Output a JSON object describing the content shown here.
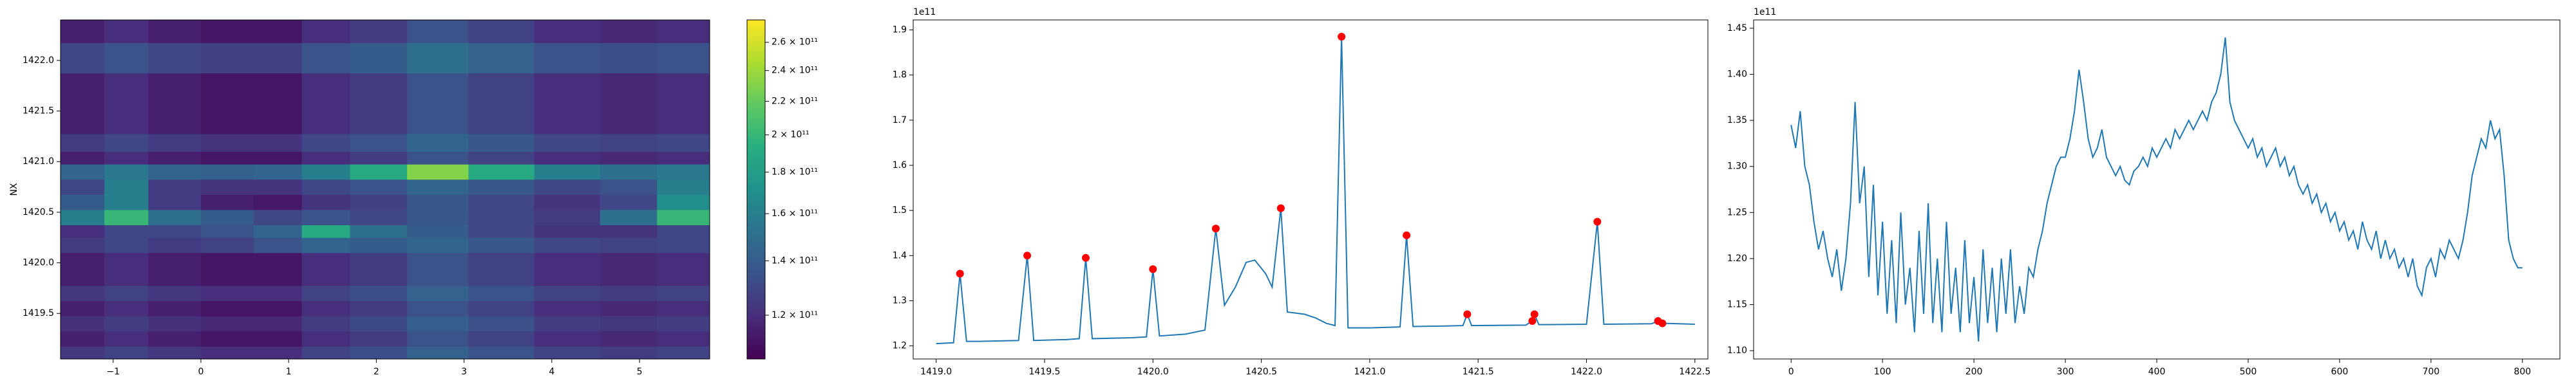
{
  "chart_data": [
    {
      "type": "heatmap",
      "ylabel": "NX",
      "colormap": "viridis",
      "norm": "log",
      "xlim": [
        -1.6,
        5.8
      ],
      "ylim": [
        1419.05,
        1422.4
      ],
      "xticks": [
        {
          "value": -1,
          "label": "−1"
        },
        0,
        1,
        2,
        3,
        4,
        5
      ],
      "yticks": [
        1419.5,
        {
          "value": 1420.0,
          "label": "1420.0"
        },
        1420.5,
        {
          "value": 1421.0,
          "label": "1421.0"
        },
        1421.5,
        {
          "value": 1422.0,
          "label": "1422.0"
        }
      ],
      "clim": [
        106000000000.0,
        277000000000.0
      ],
      "cticks": [
        {
          "value": 120000000000.0,
          "label": "1.2 × 10¹¹"
        },
        {
          "value": 140000000000.0,
          "label": "1.4 × 10¹¹"
        },
        {
          "value": 160000000000.0,
          "label": "1.6 × 10¹¹"
        },
        {
          "value": 180000000000.0,
          "label": "1.8 × 10¹¹"
        },
        {
          "value": 200000000000.0,
          "label": "2 × 10¹¹"
        },
        {
          "value": 220000000000.0,
          "label": "2.2 × 10¹¹"
        },
        {
          "value": 240000000000.0,
          "label": "2.4 × 10¹¹"
        },
        {
          "value": 260000000000.0,
          "label": "2.6 × 10¹¹"
        }
      ],
      "x": [
        -1.3,
        -0.9,
        -0.3,
        0.3,
        0.9,
        1.4,
        2.0,
        2.7,
        3.4,
        4.2,
        4.9,
        5.5
      ],
      "y": [
        1419.1,
        1419.25,
        1419.4,
        1419.55,
        1419.7,
        1419.85,
        1420.0,
        1420.2,
        1420.3,
        1420.45,
        1420.6,
        1420.75,
        1420.9,
        1421.05,
        1421.15,
        1421.4,
        1421.7,
        1422.05,
        1422.3
      ],
      "z": [
        [
          123000000000.0,
          128000000000.0,
          123000000000.0,
          120000000000.0,
          120000000000.0,
          128000000000.0,
          133000000000.0,
          143000000000.0,
          136000000000.0,
          128000000000.0,
          126000000000.0,
          128000000000.0
        ],
        [
          115000000000.0,
          120000000000.0,
          115000000000.0,
          112000000000.0,
          112000000000.0,
          120000000000.0,
          125000000000.0,
          135000000000.0,
          128000000000.0,
          120000000000.0,
          118000000000.0,
          120000000000.0
        ],
        [
          121000000000.0,
          126000000000.0,
          121000000000.0,
          118000000000.0,
          118000000000.0,
          126000000000.0,
          131000000000.0,
          141000000000.0,
          134000000000.0,
          126000000000.0,
          124000000000.0,
          126000000000.0
        ],
        [
          115000000000.0,
          120000000000.0,
          115000000000.0,
          112000000000.0,
          112000000000.0,
          120000000000.0,
          125000000000.0,
          135000000000.0,
          128000000000.0,
          120000000000.0,
          118000000000.0,
          120000000000.0
        ],
        [
          123000000000.0,
          128000000000.0,
          123000000000.0,
          120000000000.0,
          120000000000.0,
          128000000000.0,
          133000000000.0,
          143000000000.0,
          136000000000.0,
          128000000000.0,
          126000000000.0,
          128000000000.0
        ],
        [
          115000000000.0,
          120000000000.0,
          115000000000.0,
          112000000000.0,
          112000000000.0,
          120000000000.0,
          125000000000.0,
          135000000000.0,
          128000000000.0,
          120000000000.0,
          118000000000.0,
          120000000000.0
        ],
        [
          115000000000.0,
          120000000000.0,
          115000000000.0,
          112000000000.0,
          112000000000.0,
          120000000000.0,
          125000000000.0,
          135000000000.0,
          128000000000.0,
          120000000000.0,
          118000000000.0,
          120000000000.0
        ],
        [
          125000000000.0,
          130000000000.0,
          125000000000.0,
          128000000000.0,
          135000000000.0,
          145000000000.0,
          140000000000.0,
          145000000000.0,
          138000000000.0,
          130000000000.0,
          128000000000.0,
          130000000000.0
        ],
        [
          120000000000.0,
          130000000000.0,
          130000000000.0,
          135000000000.0,
          145000000000.0,
          190000000000.0,
          150000000000.0,
          140000000000.0,
          130000000000.0,
          122000000000.0,
          122000000000.0,
          130000000000.0
        ],
        [
          160000000000.0,
          200000000000.0,
          150000000000.0,
          140000000000.0,
          130000000000.0,
          135000000000.0,
          130000000000.0,
          138000000000.0,
          130000000000.0,
          125000000000.0,
          150000000000.0,
          200000000000.0
        ],
        [
          140000000000.0,
          160000000000.0,
          125000000000.0,
          115000000000.0,
          113000000000.0,
          122000000000.0,
          127000000000.0,
          137000000000.0,
          130000000000.0,
          122000000000.0,
          130000000000.0,
          170000000000.0
        ],
        [
          130000000000.0,
          160000000000.0,
          125000000000.0,
          122000000000.0,
          122000000000.0,
          130000000000.0,
          135000000000.0,
          145000000000.0,
          138000000000.0,
          130000000000.0,
          135000000000.0,
          160000000000.0
        ],
        [
          145000000000.0,
          155000000000.0,
          145000000000.0,
          142000000000.0,
          145000000000.0,
          160000000000.0,
          190000000000.0,
          230000000000.0,
          190000000000.0,
          160000000000.0,
          150000000000.0,
          155000000000.0
        ],
        [
          115000000000.0,
          120000000000.0,
          115000000000.0,
          112000000000.0,
          112000000000.0,
          120000000000.0,
          125000000000.0,
          135000000000.0,
          128000000000.0,
          120000000000.0,
          118000000000.0,
          120000000000.0
        ],
        [
          125000000000.0,
          130000000000.0,
          125000000000.0,
          122000000000.0,
          122000000000.0,
          130000000000.0,
          135000000000.0,
          145000000000.0,
          138000000000.0,
          130000000000.0,
          128000000000.0,
          130000000000.0
        ],
        [
          115000000000.0,
          120000000000.0,
          115000000000.0,
          112000000000.0,
          112000000000.0,
          120000000000.0,
          125000000000.0,
          135000000000.0,
          128000000000.0,
          120000000000.0,
          118000000000.0,
          120000000000.0
        ],
        [
          115000000000.0,
          120000000000.0,
          115000000000.0,
          112000000000.0,
          112000000000.0,
          120000000000.0,
          125000000000.0,
          135000000000.0,
          128000000000.0,
          120000000000.0,
          118000000000.0,
          120000000000.0
        ],
        [
          130000000000.0,
          135000000000.0,
          130000000000.0,
          127000000000.0,
          127000000000.0,
          135000000000.0,
          140000000000.0,
          150000000000.0,
          143000000000.0,
          135000000000.0,
          133000000000.0,
          135000000000.0
        ],
        [
          115000000000.0,
          120000000000.0,
          115000000000.0,
          112000000000.0,
          112000000000.0,
          120000000000.0,
          125000000000.0,
          135000000000.0,
          128000000000.0,
          120000000000.0,
          118000000000.0,
          120000000000.0
        ]
      ]
    },
    {
      "type": "line",
      "offset_text": "1e11",
      "color": "#1f77b4",
      "xlim": [
        1418.894,
        1422.56
      ],
      "ylim": [
        1.171,
        1.922
      ],
      "xticks": [
        {
          "value": 1419.0,
          "label": "1419.0"
        },
        1419.5,
        {
          "value": 1420.0,
          "label": "1420.0"
        },
        1420.5,
        {
          "value": 1421.0,
          "label": "1421.0"
        },
        1421.5,
        {
          "value": 1422.0,
          "label": "1422.0"
        },
        1422.5
      ],
      "yticks": [
        1.2,
        1.3,
        1.4,
        1.5,
        1.6,
        1.7,
        1.8,
        1.9
      ],
      "x": [
        1419.0,
        1419.08,
        1419.11,
        1419.14,
        1419.2,
        1419.38,
        1419.42,
        1419.45,
        1419.6,
        1419.66,
        1419.69,
        1419.72,
        1419.9,
        1419.97,
        1420.0,
        1420.03,
        1420.15,
        1420.24,
        1420.29,
        1420.33,
        1420.38,
        1420.43,
        1420.47,
        1420.52,
        1420.55,
        1420.59,
        1420.62,
        1420.7,
        1420.75,
        1420.8,
        1420.84,
        1420.87,
        1420.9,
        1421.0,
        1421.14,
        1421.17,
        1421.2,
        1421.35,
        1421.43,
        1421.45,
        1421.47,
        1421.72,
        1421.75,
        1421.76,
        1421.78,
        1422.0,
        1422.05,
        1422.08,
        1422.3,
        1422.33,
        1422.35,
        1422.5
      ],
      "values": [
        1.205,
        1.207,
        1.36,
        1.21,
        1.21,
        1.212,
        1.4,
        1.212,
        1.214,
        1.216,
        1.395,
        1.216,
        1.218,
        1.22,
        1.37,
        1.222,
        1.226,
        1.235,
        1.46,
        1.29,
        1.33,
        1.385,
        1.39,
        1.36,
        1.33,
        1.505,
        1.275,
        1.27,
        1.262,
        1.25,
        1.245,
        1.885,
        1.24,
        1.24,
        1.242,
        1.445,
        1.243,
        1.244,
        1.245,
        1.27,
        1.245,
        1.246,
        1.255,
        1.27,
        1.247,
        1.248,
        1.475,
        1.248,
        1.249,
        1.255,
        1.25,
        1.248
      ],
      "markers": {
        "color": "#ff0000",
        "x": [
          1419.11,
          1419.42,
          1419.69,
          1420.0,
          1420.29,
          1420.59,
          1420.87,
          1421.17,
          1421.45,
          1421.75,
          1421.76,
          1422.05,
          1422.33,
          1422.35
        ],
        "values": [
          1.36,
          1.4,
          1.395,
          1.37,
          1.46,
          1.505,
          1.885,
          1.445,
          1.27,
          1.255,
          1.27,
          1.475,
          1.255,
          1.25
        ]
      }
    },
    {
      "type": "line",
      "offset_text": "1e11",
      "color": "#1f77b4",
      "xlim": [
        -41,
        841
      ],
      "ylim": [
        1.091,
        1.459
      ],
      "xticks": [
        0,
        100,
        200,
        300,
        400,
        500,
        600,
        700,
        800
      ],
      "yticks": [
        {
          "value": 1.1,
          "label": "1.10"
        },
        1.15,
        {
          "value": 1.2,
          "label": "1.20"
        },
        1.25,
        {
          "value": 1.3,
          "label": "1.30"
        },
        1.35,
        {
          "value": 1.4,
          "label": "1.40"
        },
        1.45
      ],
      "x": [
        0,
        5,
        10,
        15,
        20,
        25,
        30,
        35,
        40,
        45,
        50,
        55,
        60,
        65,
        70,
        75,
        80,
        85,
        90,
        95,
        100,
        105,
        110,
        115,
        120,
        125,
        130,
        135,
        140,
        145,
        150,
        155,
        160,
        165,
        170,
        175,
        180,
        185,
        190,
        195,
        200,
        205,
        210,
        215,
        220,
        225,
        230,
        235,
        240,
        245,
        250,
        255,
        260,
        265,
        270,
        275,
        280,
        285,
        290,
        295,
        300,
        305,
        310,
        315,
        320,
        325,
        330,
        335,
        340,
        345,
        350,
        355,
        360,
        365,
        370,
        375,
        380,
        385,
        390,
        395,
        400,
        405,
        410,
        415,
        420,
        425,
        430,
        435,
        440,
        445,
        450,
        455,
        460,
        465,
        470,
        475,
        480,
        485,
        490,
        495,
        500,
        505,
        510,
        515,
        520,
        525,
        530,
        535,
        540,
        545,
        550,
        555,
        560,
        565,
        570,
        575,
        580,
        585,
        590,
        595,
        600,
        605,
        610,
        615,
        620,
        625,
        630,
        635,
        640,
        645,
        650,
        655,
        660,
        665,
        670,
        675,
        680,
        685,
        690,
        695,
        700,
        705,
        710,
        715,
        720,
        725,
        730,
        735,
        740,
        745,
        750,
        755,
        760,
        765,
        770,
        775,
        780,
        785,
        790,
        795,
        800
      ],
      "values": [
        1.345,
        1.32,
        1.36,
        1.3,
        1.28,
        1.24,
        1.21,
        1.23,
        1.2,
        1.18,
        1.21,
        1.165,
        1.2,
        1.26,
        1.37,
        1.26,
        1.3,
        1.18,
        1.28,
        1.16,
        1.24,
        1.14,
        1.22,
        1.13,
        1.25,
        1.15,
        1.19,
        1.12,
        1.23,
        1.14,
        1.26,
        1.13,
        1.2,
        1.12,
        1.24,
        1.14,
        1.19,
        1.12,
        1.22,
        1.13,
        1.18,
        1.11,
        1.21,
        1.13,
        1.19,
        1.12,
        1.2,
        1.14,
        1.21,
        1.13,
        1.17,
        1.14,
        1.19,
        1.18,
        1.21,
        1.23,
        1.26,
        1.28,
        1.3,
        1.31,
        1.31,
        1.33,
        1.36,
        1.405,
        1.37,
        1.33,
        1.31,
        1.32,
        1.34,
        1.31,
        1.3,
        1.29,
        1.3,
        1.285,
        1.28,
        1.295,
        1.3,
        1.31,
        1.3,
        1.32,
        1.31,
        1.32,
        1.33,
        1.32,
        1.34,
        1.33,
        1.34,
        1.35,
        1.34,
        1.35,
        1.36,
        1.35,
        1.37,
        1.38,
        1.4,
        1.44,
        1.37,
        1.35,
        1.34,
        1.33,
        1.32,
        1.33,
        1.31,
        1.32,
        1.3,
        1.31,
        1.32,
        1.3,
        1.31,
        1.29,
        1.3,
        1.28,
        1.27,
        1.28,
        1.26,
        1.27,
        1.25,
        1.26,
        1.24,
        1.25,
        1.23,
        1.24,
        1.22,
        1.23,
        1.21,
        1.24,
        1.22,
        1.21,
        1.23,
        1.2,
        1.22,
        1.2,
        1.21,
        1.19,
        1.2,
        1.18,
        1.2,
        1.17,
        1.16,
        1.19,
        1.2,
        1.18,
        1.21,
        1.2,
        1.22,
        1.21,
        1.2,
        1.22,
        1.25,
        1.29,
        1.31,
        1.33,
        1.32,
        1.35,
        1.33,
        1.34,
        1.29,
        1.22,
        1.2,
        1.19,
        1.19
      ]
    }
  ]
}
